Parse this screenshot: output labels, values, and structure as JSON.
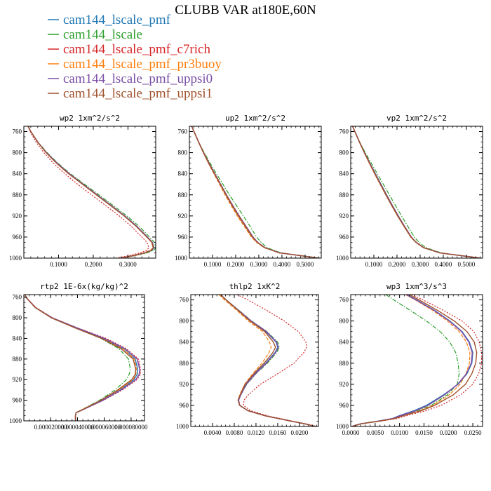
{
  "figure": {
    "title": "CLUBB VAR at180E,60N"
  },
  "legend": [
    {
      "name": "cam144_lscale_pmf",
      "color": "#1f77b4"
    },
    {
      "name": "cam144_lscale",
      "color": "#2ca02c"
    },
    {
      "name": "cam144_lscale_pmf_c7rich",
      "color": "#d62728"
    },
    {
      "name": "cam144_lscale_pmf_pr3buoy",
      "color": "#ff7f0e"
    },
    {
      "name": "cam144_lscale_pmf_uppsi0",
      "color": "#7b4fa6"
    },
    {
      "name": "cam144_lscale_pmf_uppsi1",
      "color": "#a0522d"
    }
  ],
  "chart_data": [
    {
      "type": "line",
      "title": "wp2  1xm^2/s^2",
      "xlim": [
        0,
        0.38
      ],
      "ylim": [
        1000,
        750
      ],
      "y_reversed": true,
      "xticks": [
        0.1,
        0.2,
        0.3
      ],
      "xtick_labels": [
        "0.1000",
        "0.2000",
        "0.3000"
      ],
      "yticks": [
        760,
        800,
        840,
        880,
        920,
        960,
        1000
      ],
      "y": [
        750,
        760,
        780,
        800,
        820,
        840,
        860,
        880,
        900,
        920,
        940,
        960,
        970,
        980,
        985,
        990,
        995,
        1000
      ],
      "series": [
        {
          "x": [
            0.012,
            0.02,
            0.04,
            0.065,
            0.095,
            0.13,
            0.17,
            0.21,
            0.25,
            0.29,
            0.325,
            0.355,
            0.37,
            0.375,
            0.37,
            0.35,
            0.32,
            0.28
          ]
        },
        {
          "x": [
            0.012,
            0.02,
            0.041,
            0.067,
            0.098,
            0.134,
            0.175,
            0.216,
            0.257,
            0.297,
            0.333,
            0.362,
            0.376,
            0.38,
            0.375,
            0.355,
            0.322,
            0.28
          ]
        },
        {
          "x": [
            0.012,
            0.018,
            0.035,
            0.058,
            0.085,
            0.118,
            0.155,
            0.195,
            0.235,
            0.275,
            0.31,
            0.34,
            0.355,
            0.36,
            0.355,
            0.335,
            0.305,
            0.265
          ]
        },
        {
          "x": [
            0.012,
            0.02,
            0.04,
            0.065,
            0.095,
            0.13,
            0.17,
            0.21,
            0.25,
            0.29,
            0.325,
            0.355,
            0.368,
            0.372,
            0.365,
            0.345,
            0.315,
            0.275
          ]
        },
        {
          "x": [
            0.012,
            0.02,
            0.04,
            0.065,
            0.096,
            0.131,
            0.171,
            0.211,
            0.251,
            0.291,
            0.326,
            0.356,
            0.37,
            0.374,
            0.368,
            0.348,
            0.318,
            0.278
          ]
        },
        {
          "x": [
            0.012,
            0.02,
            0.04,
            0.064,
            0.094,
            0.129,
            0.169,
            0.209,
            0.249,
            0.289,
            0.324,
            0.354,
            0.369,
            0.373,
            0.368,
            0.35,
            0.32,
            0.28
          ]
        }
      ]
    },
    {
      "type": "line",
      "title": "up2  1xm^2/s^2",
      "xlim": [
        0,
        0.57
      ],
      "ylim": [
        1000,
        750
      ],
      "y_reversed": true,
      "xticks": [
        0.1,
        0.2,
        0.3,
        0.4,
        0.5
      ],
      "xtick_labels": [
        "0.1000",
        "0.2000",
        "0.3000",
        "0.4000",
        "0.5000"
      ],
      "yticks": [
        760,
        800,
        840,
        880,
        920,
        960,
        1000
      ],
      "y": [
        750,
        760,
        780,
        800,
        820,
        840,
        860,
        880,
        900,
        920,
        940,
        960,
        970,
        980,
        990,
        1000
      ],
      "series": [
        {
          "x": [
            0.01,
            0.02,
            0.04,
            0.062,
            0.085,
            0.11,
            0.135,
            0.16,
            0.187,
            0.215,
            0.245,
            0.275,
            0.295,
            0.325,
            0.39,
            0.56
          ]
        },
        {
          "x": [
            0.01,
            0.02,
            0.04,
            0.064,
            0.09,
            0.117,
            0.145,
            0.173,
            0.203,
            0.233,
            0.263,
            0.29,
            0.31,
            0.335,
            0.395,
            0.56
          ]
        },
        {
          "x": [
            0.01,
            0.02,
            0.04,
            0.062,
            0.086,
            0.111,
            0.136,
            0.161,
            0.188,
            0.216,
            0.246,
            0.276,
            0.296,
            0.326,
            0.39,
            0.56
          ]
        },
        {
          "x": [
            0.01,
            0.02,
            0.039,
            0.06,
            0.082,
            0.106,
            0.13,
            0.154,
            0.18,
            0.207,
            0.237,
            0.268,
            0.29,
            0.322,
            0.388,
            0.56
          ]
        },
        {
          "x": [
            0.01,
            0.02,
            0.04,
            0.061,
            0.084,
            0.109,
            0.134,
            0.159,
            0.185,
            0.213,
            0.243,
            0.273,
            0.294,
            0.325,
            0.39,
            0.56
          ]
        },
        {
          "x": [
            0.01,
            0.02,
            0.04,
            0.061,
            0.083,
            0.108,
            0.133,
            0.158,
            0.184,
            0.212,
            0.242,
            0.272,
            0.293,
            0.324,
            0.389,
            0.56
          ]
        }
      ]
    },
    {
      "type": "line",
      "title": "vp2  1xm^2/s^2",
      "xlim": [
        0,
        0.57
      ],
      "ylim": [
        1000,
        750
      ],
      "y_reversed": true,
      "xticks": [
        0.1,
        0.2,
        0.3,
        0.4,
        0.5
      ],
      "xtick_labels": [
        "0.1000",
        "0.2000",
        "0.3000",
        "0.4000",
        "0.5000"
      ],
      "yticks": [
        760,
        800,
        840,
        880,
        920,
        960,
        1000
      ],
      "y": [
        750,
        760,
        780,
        800,
        820,
        840,
        860,
        880,
        900,
        920,
        940,
        960,
        970,
        980,
        990,
        1000
      ],
      "series": [
        {
          "x": [
            0.008,
            0.018,
            0.038,
            0.06,
            0.083,
            0.107,
            0.131,
            0.155,
            0.18,
            0.206,
            0.233,
            0.262,
            0.283,
            0.315,
            0.385,
            0.56
          ]
        },
        {
          "x": [
            0.008,
            0.018,
            0.039,
            0.063,
            0.089,
            0.115,
            0.141,
            0.167,
            0.193,
            0.22,
            0.247,
            0.275,
            0.295,
            0.325,
            0.39,
            0.56
          ]
        },
        {
          "x": [
            0.008,
            0.018,
            0.038,
            0.06,
            0.083,
            0.107,
            0.131,
            0.155,
            0.18,
            0.206,
            0.234,
            0.263,
            0.284,
            0.316,
            0.386,
            0.56
          ]
        },
        {
          "x": [
            0.008,
            0.018,
            0.037,
            0.058,
            0.08,
            0.103,
            0.127,
            0.151,
            0.176,
            0.202,
            0.23,
            0.259,
            0.281,
            0.313,
            0.384,
            0.56
          ]
        },
        {
          "x": [
            0.008,
            0.018,
            0.038,
            0.059,
            0.082,
            0.105,
            0.129,
            0.153,
            0.178,
            0.204,
            0.232,
            0.261,
            0.282,
            0.314,
            0.385,
            0.56
          ]
        },
        {
          "x": [
            0.008,
            0.018,
            0.038,
            0.059,
            0.081,
            0.104,
            0.128,
            0.152,
            0.177,
            0.203,
            0.231,
            0.26,
            0.282,
            0.314,
            0.385,
            0.56
          ]
        }
      ]
    },
    {
      "type": "line",
      "title": "rtp2  1E-6x(kg/kg)^2",
      "xlim": [
        0,
        9e-05
      ],
      "ylim": [
        1000,
        755
      ],
      "y_reversed": true,
      "xticks": [
        2e-05,
        4e-05,
        6e-05,
        8e-05
      ],
      "xtick_labels": [
        "0.000020000",
        "0.000040000",
        "0.000060000",
        "0.000080000"
      ],
      "yticks": [
        760,
        800,
        840,
        880,
        920,
        960,
        1000
      ],
      "y": [
        755,
        760,
        780,
        800,
        820,
        840,
        860,
        880,
        900,
        910,
        920,
        940,
        960,
        980,
        984,
        990,
        1000
      ],
      "series": [
        {
          "x": [
            1e-06,
            1.5e-06,
            8.5e-06,
            2.05e-05,
            3.9e-05,
            5.9e-05,
            7.4e-05,
            8.3e-05,
            8.5e-05,
            8.45e-05,
            8.2e-05,
            7.15e-05,
            5.85e-05,
            4.25e-05,
            3.9e-05,
            3.85e-05,
            3.85e-05
          ]
        },
        {
          "x": [
            1e-06,
            1.5e-06,
            8.5e-06,
            2.1e-05,
            3.9e-05,
            5.75e-05,
            7.1e-05,
            7.8e-05,
            7.95e-05,
            7.85e-05,
            7.65e-05,
            6.8e-05,
            5.65e-05,
            4.2e-05,
            3.9e-05,
            3.85e-05,
            3.85e-05
          ]
        },
        {
          "x": [
            1e-06,
            1.5e-06,
            9e-06,
            2.15e-05,
            4.05e-05,
            6.15e-05,
            7.65e-05,
            8.55e-05,
            8.7e-05,
            8.7e-05,
            8.45e-05,
            7.35e-05,
            5.95e-05,
            4.3e-05,
            3.9e-05,
            3.85e-05,
            3.85e-05
          ]
        },
        {
          "x": [
            1e-06,
            1.5e-06,
            8.5e-06,
            2.05e-05,
            3.9e-05,
            5.9e-05,
            7.4e-05,
            8.25e-05,
            8.4e-05,
            8.35e-05,
            8.15e-05,
            7.1e-05,
            5.8e-05,
            4.2e-05,
            3.9e-05,
            3.85e-05,
            3.85e-05
          ]
        },
        {
          "x": [
            1e-06,
            1.5e-06,
            8.5e-06,
            2.1e-05,
            4e-05,
            6e-05,
            7.55e-05,
            8.45e-05,
            8.65e-05,
            8.6e-05,
            8.35e-05,
            7.25e-05,
            5.9e-05,
            4.25e-05,
            3.9e-05,
            3.85e-05,
            3.85e-05
          ]
        },
        {
          "x": [
            1e-06,
            1.5e-06,
            8.5e-06,
            2.05e-05,
            3.85e-05,
            5.8e-05,
            7.25e-05,
            8.15e-05,
            8.35e-05,
            8.3e-05,
            8.05e-05,
            7e-05,
            5.75e-05,
            4.25e-05,
            3.9e-05,
            3.85e-05,
            3.85e-05
          ]
        }
      ]
    },
    {
      "type": "line",
      "title": "thlp2  1xK^2",
      "xlim": [
        0,
        0.0235
      ],
      "ylim": [
        1000,
        750
      ],
      "y_reversed": true,
      "xticks": [
        0.004,
        0.008,
        0.012,
        0.016,
        0.02
      ],
      "xtick_labels": [
        "0.0040",
        "0.0080",
        "0.0120",
        "0.0160",
        "0.0200"
      ],
      "yticks": [
        760,
        800,
        840,
        880,
        920,
        960,
        1000
      ],
      "y": [
        750,
        760,
        780,
        800,
        820,
        840,
        850,
        860,
        880,
        900,
        920,
        940,
        950,
        960,
        970,
        980,
        990,
        995,
        1000
      ],
      "series": [
        {
          "x": [
            0.0055,
            0.0065,
            0.0088,
            0.011,
            0.0138,
            0.0157,
            0.016,
            0.0155,
            0.0138,
            0.0118,
            0.0102,
            0.0092,
            0.0088,
            0.009,
            0.0105,
            0.0138,
            0.0185,
            0.021,
            0.023
          ]
        },
        {
          "x": [
            0.0055,
            0.0065,
            0.0089,
            0.0112,
            0.014,
            0.016,
            0.0163,
            0.0158,
            0.0141,
            0.012,
            0.0103,
            0.0092,
            0.0088,
            0.009,
            0.0105,
            0.0138,
            0.0185,
            0.021,
            0.023
          ]
        },
        {
          "x": [
            0.0085,
            0.0105,
            0.014,
            0.0172,
            0.0198,
            0.0212,
            0.0213,
            0.0208,
            0.019,
            0.016,
            0.0128,
            0.0106,
            0.0098,
            0.0097,
            0.011,
            0.0142,
            0.0188,
            0.0212,
            0.0232
          ]
        },
        {
          "x": [
            0.0052,
            0.0062,
            0.0085,
            0.0106,
            0.0132,
            0.0145,
            0.0148,
            0.0144,
            0.0131,
            0.0114,
            0.0099,
            0.009,
            0.0087,
            0.009,
            0.0105,
            0.0138,
            0.0185,
            0.021,
            0.023
          ]
        },
        {
          "x": [
            0.0055,
            0.0065,
            0.0088,
            0.0111,
            0.0139,
            0.0158,
            0.0161,
            0.0156,
            0.0139,
            0.0119,
            0.0102,
            0.0092,
            0.0088,
            0.009,
            0.0105,
            0.0138,
            0.0185,
            0.021,
            0.023
          ]
        },
        {
          "x": [
            0.0055,
            0.0065,
            0.0087,
            0.0109,
            0.0136,
            0.0152,
            0.0156,
            0.0151,
            0.0135,
            0.0116,
            0.01,
            0.0091,
            0.0087,
            0.009,
            0.0105,
            0.0138,
            0.0185,
            0.021,
            0.023
          ]
        }
      ]
    },
    {
      "type": "line",
      "title": "wp3  1xm^3/s^3",
      "xlim": [
        0,
        0.027
      ],
      "ylim": [
        1000,
        750
      ],
      "y_reversed": true,
      "xticks": [
        0,
        0.005,
        0.01,
        0.015,
        0.02,
        0.025
      ],
      "xtick_labels": [
        "0.0000",
        "0.0050",
        "0.0100",
        "0.0150",
        "0.0200",
        "0.0250"
      ],
      "yticks": [
        760,
        800,
        840,
        880,
        920,
        960,
        1000
      ],
      "y": [
        750,
        760,
        780,
        800,
        820,
        840,
        860,
        880,
        900,
        920,
        940,
        960,
        970,
        980,
        985,
        990,
        995,
        1000
      ],
      "series": [
        {
          "x": [
            0.0115,
            0.0135,
            0.0172,
            0.0203,
            0.0228,
            0.0243,
            0.025,
            0.0248,
            0.0238,
            0.022,
            0.019,
            0.0155,
            0.013,
            0.0098,
            0.0085,
            0.0055,
            0.002,
            0.0002
          ]
        },
        {
          "x": [
            0.0072,
            0.0088,
            0.0122,
            0.0155,
            0.0183,
            0.0203,
            0.0215,
            0.022,
            0.0222,
            0.0218,
            0.0198,
            0.0165,
            0.0138,
            0.0102,
            0.0088,
            0.0058,
            0.0022,
            0.0002
          ]
        },
        {
          "x": [
            0.0125,
            0.0148,
            0.019,
            0.0228,
            0.0252,
            0.0263,
            0.0268,
            0.0268,
            0.0262,
            0.025,
            0.0225,
            0.0185,
            0.0155,
            0.0112,
            0.0095,
            0.006,
            0.0022,
            0.0002
          ]
        },
        {
          "x": [
            0.0112,
            0.0132,
            0.0168,
            0.0198,
            0.0222,
            0.0237,
            0.0244,
            0.0243,
            0.0236,
            0.0224,
            0.0202,
            0.0168,
            0.0142,
            0.0105,
            0.009,
            0.0058,
            0.0021,
            0.0002
          ]
        },
        {
          "x": [
            0.0114,
            0.0134,
            0.0171,
            0.0202,
            0.0227,
            0.0242,
            0.0249,
            0.0247,
            0.0237,
            0.0219,
            0.0192,
            0.0158,
            0.0133,
            0.01,
            0.0086,
            0.0056,
            0.002,
            0.0002
          ]
        },
        {
          "x": [
            0.012,
            0.014,
            0.0178,
            0.0212,
            0.0238,
            0.0253,
            0.0258,
            0.0256,
            0.0248,
            0.0235,
            0.021,
            0.0172,
            0.0145,
            0.0106,
            0.009,
            0.0058,
            0.0021,
            0.0002
          ]
        }
      ]
    }
  ]
}
